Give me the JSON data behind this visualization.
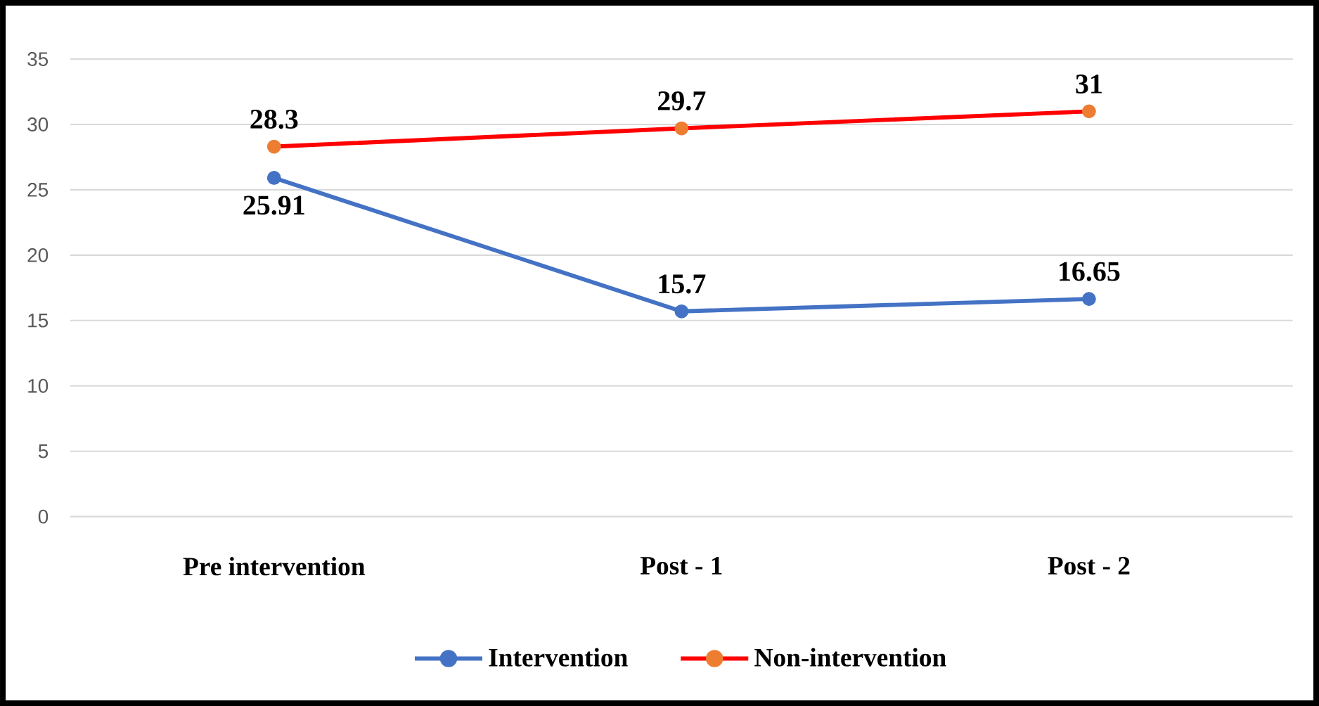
{
  "chart_data": {
    "type": "line",
    "categories": [
      "Pre intervention",
      "Post - 1",
      "Post - 2"
    ],
    "series": [
      {
        "name": "Intervention",
        "color": "#4472c4",
        "values": [
          25.91,
          15.7,
          16.65
        ]
      },
      {
        "name": "Non-intervention",
        "color": "#ff0000",
        "colors": [
          "#ed7d31",
          "#ed7d31",
          "#ed7d31"
        ],
        "values": [
          28.3,
          29.7,
          31
        ]
      }
    ],
    "ylim": [
      0,
      35
    ],
    "yticks": [
      0,
      5,
      10,
      15,
      20,
      25,
      30,
      35
    ],
    "grid": "y",
    "legend": "bottom",
    "marker": "circle",
    "line_style": "solid",
    "data_labels": true
  }
}
